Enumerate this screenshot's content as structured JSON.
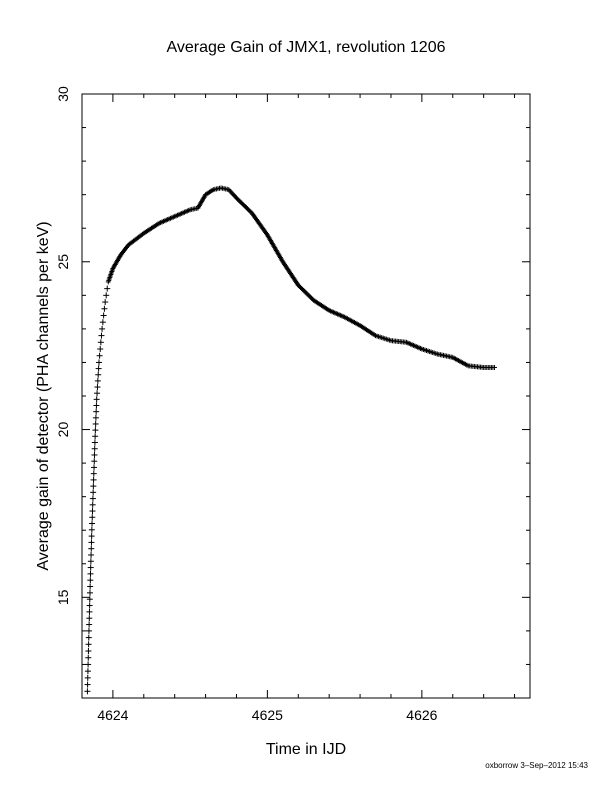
{
  "chart_data": {
    "type": "scatter",
    "title": "Average Gain of JMX1, revolution 1206",
    "xlabel": "Time in IJD",
    "ylabel": "Average gain of detector (PHA channels per keV)",
    "xlim": [
      4623.8,
      4626.7
    ],
    "ylim": [
      12.0,
      30.0
    ],
    "x_ticks": [
      4624,
      4625,
      4626
    ],
    "x_tick_labels": [
      "4624",
      "4625",
      "4626"
    ],
    "y_ticks": [
      15,
      20,
      25,
      30
    ],
    "y_tick_labels": [
      "15",
      "20",
      "25",
      "30"
    ],
    "grid": false,
    "marker": "+",
    "series": [
      {
        "marker": "+",
        "x": [
          4623.835,
          4623.845,
          4623.855,
          4623.865,
          4623.875,
          4623.885,
          4623.895,
          4623.91,
          4623.93,
          4623.95,
          4623.97,
          4624.0,
          4624.05,
          4624.1,
          4624.2,
          4624.3,
          4624.4,
          4624.5,
          4624.55,
          4624.6,
          4624.65,
          4624.7,
          4624.75,
          4624.8,
          4624.9,
          4625.0,
          4625.1,
          4625.2,
          4625.3,
          4625.4,
          4625.5,
          4625.6,
          4625.7,
          4625.8,
          4625.9,
          4626.0,
          4626.1,
          4626.2,
          4626.3,
          4626.4,
          4626.47
        ],
        "y": [
          12.2,
          14.0,
          15.7,
          17.2,
          18.5,
          19.8,
          20.9,
          22.0,
          23.0,
          23.8,
          24.4,
          24.8,
          25.2,
          25.5,
          25.85,
          26.15,
          26.35,
          26.55,
          26.6,
          27.0,
          27.15,
          27.2,
          27.15,
          26.9,
          26.45,
          25.8,
          25.0,
          24.3,
          23.85,
          23.55,
          23.35,
          23.1,
          22.8,
          22.65,
          22.6,
          22.4,
          22.25,
          22.15,
          21.9,
          21.85,
          21.85
        ]
      }
    ]
  },
  "footer": {
    "stamp": "oxborrow  3–Sep–2012 15:43"
  }
}
